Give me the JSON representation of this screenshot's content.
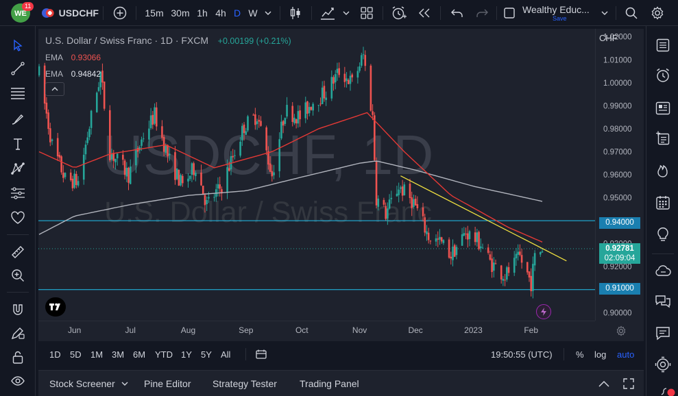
{
  "header": {
    "notif_count": "11",
    "symbol": "USDCHF",
    "timeframes": [
      "15m",
      "30m",
      "1h",
      "4h",
      "D",
      "W"
    ],
    "active_timeframe": "D",
    "layout_name": "Wealthy Educ...",
    "save_label": "Save"
  },
  "legend": {
    "title": "U.S. Dollar / Swiss Franc · 1D · FXCM",
    "change": "+0.00199 (+0.21%)",
    "ema1_label": "EMA",
    "ema1_value": "0.93066",
    "ema2_label": "EMA",
    "ema2_value": "0.94842"
  },
  "watermark": {
    "symbol": "USDCHF, 1D",
    "name": "U.S. Dollar / Swiss Franc"
  },
  "price_axis": {
    "currency": "CHF",
    "labels": [
      "1.02000",
      "1.01000",
      "1.00000",
      "0.99000",
      "0.98000",
      "0.97000",
      "0.96000",
      "0.95000",
      "0.93000",
      "0.92000",
      "0.90000"
    ],
    "level_tag_1": "0.94000",
    "level_tag_2": "0.91000",
    "last_price": "0.92781",
    "countdown": "02:09:04"
  },
  "time_axis": {
    "labels": [
      "Jun",
      "Jul",
      "Aug",
      "Sep",
      "Oct",
      "Nov",
      "Dec",
      "2023",
      "Feb"
    ]
  },
  "range_bar": {
    "ranges": [
      "1D",
      "5D",
      "1M",
      "3M",
      "6M",
      "YTD",
      "1Y",
      "5Y",
      "All"
    ],
    "clock": "19:50:55 (UTC)",
    "percent": "%",
    "log": "log",
    "auto": "auto"
  },
  "panels": {
    "items": [
      "Stock Screener",
      "Pine Editor",
      "Strategy Tester",
      "Trading Panel"
    ]
  },
  "colors": {
    "up": "#26a69a",
    "down": "#ef5350",
    "ema_fast": "#e53935",
    "ema_slow": "#b2b5be",
    "trend": "#f0e040",
    "level": "#22c3f0",
    "accent": "#2962ff"
  },
  "chart_data": {
    "type": "candlestick",
    "y_range": [
      0.8965,
      1.0235
    ],
    "horizontal_levels": [
      0.94,
      0.91
    ],
    "trendline": {
      "from": [
        "2022-11-23",
        0.9595
      ],
      "to": [
        "2023-02-20",
        0.9225
      ]
    },
    "anchors": [
      [
        "2022-05-13",
        1.004
      ],
      [
        "2022-05-20",
        0.973
      ],
      [
        "2022-05-27",
        0.958
      ],
      [
        "2022-06-03",
        0.957
      ],
      [
        "2022-06-10",
        0.985
      ],
      [
        "2022-06-15",
        1.004
      ],
      [
        "2022-06-20",
        0.97
      ],
      [
        "2022-06-30",
        0.96
      ],
      [
        "2022-07-08",
        0.977
      ],
      [
        "2022-07-14",
        0.986
      ],
      [
        "2022-07-22",
        0.966
      ],
      [
        "2022-07-29",
        0.955
      ],
      [
        "2022-08-05",
        0.964
      ],
      [
        "2022-08-11",
        0.947
      ],
      [
        "2022-08-19",
        0.955
      ],
      [
        "2022-08-31",
        0.981
      ],
      [
        "2022-09-07",
        0.986
      ],
      [
        "2022-09-15",
        0.96
      ],
      [
        "2022-09-22",
        0.988
      ],
      [
        "2022-09-30",
        0.985
      ],
      [
        "2022-10-07",
        0.992
      ],
      [
        "2022-10-14",
        0.996
      ],
      [
        "2022-10-21",
        1.005
      ],
      [
        "2022-10-28",
        1.0
      ],
      [
        "2022-11-03",
        1.012
      ],
      [
        "2022-11-08",
        0.985
      ],
      [
        "2022-11-10",
        0.95
      ],
      [
        "2022-11-15",
        0.943
      ],
      [
        "2022-11-22",
        0.955
      ],
      [
        "2022-11-30",
        0.948
      ],
      [
        "2022-12-08",
        0.933
      ],
      [
        "2022-12-15",
        0.93
      ],
      [
        "2022-12-20",
        0.925
      ],
      [
        "2022-12-28",
        0.935
      ],
      [
        "2023-01-05",
        0.93
      ],
      [
        "2023-01-10",
        0.922
      ],
      [
        "2023-01-18",
        0.916
      ],
      [
        "2023-01-26",
        0.924
      ],
      [
        "2023-02-01",
        0.913
      ],
      [
        "2023-02-03",
        0.924
      ],
      [
        "2023-02-07",
        0.928
      ]
    ],
    "ema_fast_anchors": [
      [
        "2022-05-13",
        0.97
      ],
      [
        "2022-06-01",
        0.963
      ],
      [
        "2022-06-20",
        0.969
      ],
      [
        "2022-07-20",
        0.973
      ],
      [
        "2022-08-15",
        0.963
      ],
      [
        "2022-09-15",
        0.97
      ],
      [
        "2022-10-10",
        0.98
      ],
      [
        "2022-11-05",
        0.987
      ],
      [
        "2022-11-25",
        0.97
      ],
      [
        "2022-12-20",
        0.951
      ],
      [
        "2023-01-20",
        0.937
      ],
      [
        "2023-02-07",
        0.9307
      ]
    ],
    "ema_slow_anchors": [
      [
        "2022-05-13",
        0.934
      ],
      [
        "2022-06-01",
        0.942
      ],
      [
        "2022-07-01",
        0.947
      ],
      [
        "2022-08-01",
        0.951
      ],
      [
        "2022-09-01",
        0.953
      ],
      [
        "2022-10-01",
        0.959
      ],
      [
        "2022-11-01",
        0.965
      ],
      [
        "2022-11-10",
        0.966
      ],
      [
        "2022-12-01",
        0.962
      ],
      [
        "2023-01-01",
        0.955
      ],
      [
        "2023-02-07",
        0.9484
      ]
    ],
    "x_labels": [
      [
        "2022-06-01",
        "Jun"
      ],
      [
        "2022-07-01",
        "Jul"
      ],
      [
        "2022-08-01",
        "Aug"
      ],
      [
        "2022-09-01",
        "Sep"
      ],
      [
        "2022-10-01",
        "Oct"
      ],
      [
        "2022-11-01",
        "Nov"
      ],
      [
        "2022-12-01",
        "Dec"
      ],
      [
        "2023-01-01",
        "2023"
      ],
      [
        "2023-02-01",
        "Feb"
      ]
    ]
  }
}
